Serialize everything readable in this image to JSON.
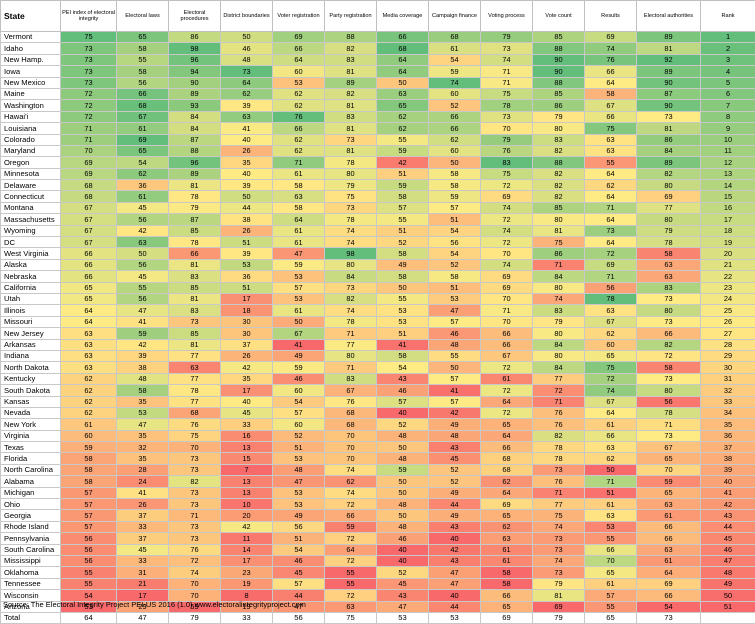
{
  "table": {
    "columns": [
      "State",
      "PEI index of electoral integrity",
      "Electoral laws",
      "Electoral procedures",
      "District boundaries",
      "Voter registration",
      "Party registration",
      "Media coverage",
      "Campaign finance",
      "Voting process",
      "Vote count",
      "Results",
      "Electoral authorities",
      "Rank"
    ],
    "rows": [
      [
        "Vermont",
        75,
        65,
        86,
        50,
        69,
        88,
        66,
        68,
        79,
        85,
        69,
        89,
        1
      ],
      [
        "Idaho",
        73,
        58,
        98,
        46,
        66,
        82,
        68,
        61,
        73,
        88,
        74,
        81,
        2
      ],
      [
        "New Hamp.",
        73,
        55,
        96,
        48,
        64,
        83,
        64,
        54,
        74,
        90,
        76,
        92,
        3
      ],
      [
        "Iowa",
        73,
        58,
        94,
        73,
        60,
        81,
        64,
        59,
        71,
        90,
        66,
        89,
        4
      ],
      [
        "New Mexico",
        73,
        56,
        90,
        64,
        53,
        89,
        50,
        74,
        71,
        88,
        64,
        90,
        5
      ],
      [
        "Maine",
        72,
        66,
        89,
        62,
        62,
        82,
        63,
        60,
        75,
        85,
        58,
        87,
        6
      ],
      [
        "Washington",
        72,
        68,
        93,
        39,
        62,
        81,
        65,
        52,
        78,
        86,
        67,
        90,
        7
      ],
      [
        "Hawai'i",
        72,
        67,
        84,
        63,
        76,
        83,
        62,
        66,
        73,
        79,
        66,
        73,
        8
      ],
      [
        "Louisiana",
        71,
        61,
        84,
        41,
        66,
        81,
        62,
        66,
        70,
        80,
        75,
        81,
        9
      ],
      [
        "Colorado",
        71,
        69,
        87,
        40,
        62,
        73,
        55,
        62,
        79,
        83,
        63,
        86,
        10
      ],
      [
        "Maryland",
        70,
        65,
        88,
        26,
        62,
        81,
        59,
        60,
        76,
        82,
        63,
        84,
        11
      ],
      [
        "Oregon",
        69,
        54,
        96,
        35,
        71,
        78,
        42,
        50,
        83,
        88,
        55,
        89,
        12
      ],
      [
        "Minnesota",
        69,
        62,
        89,
        40,
        61,
        80,
        51,
        58,
        75,
        82,
        64,
        82,
        13
      ],
      [
        "Delaware",
        68,
        36,
        81,
        39,
        58,
        79,
        59,
        58,
        72,
        82,
        62,
        80,
        14
      ],
      [
        "Connecticut",
        68,
        61,
        78,
        50,
        63,
        75,
        58,
        59,
        69,
        82,
        64,
        69,
        15
      ],
      [
        "Montana",
        67,
        45,
        79,
        44,
        58,
        73,
        57,
        57,
        74,
        85,
        71,
        77,
        16
      ],
      [
        "Massachusetts",
        67,
        56,
        87,
        38,
        64,
        78,
        55,
        51,
        72,
        80,
        64,
        80,
        17
      ],
      [
        "Wyoming",
        67,
        42,
        85,
        26,
        61,
        74,
        51,
        54,
        74,
        81,
        73,
        79,
        18
      ],
      [
        "DC",
        67,
        63,
        78,
        51,
        61,
        74,
        52,
        56,
        72,
        75,
        64,
        78,
        19
      ],
      [
        "West Virginia",
        66,
        50,
        66,
        39,
        47,
        98,
        58,
        54,
        70,
        86,
        72,
        58,
        20
      ],
      [
        "Alaska",
        66,
        56,
        81,
        53,
        59,
        80,
        49,
        52,
        74,
        71,
        69,
        63,
        21
      ],
      [
        "Nebraska",
        66,
        45,
        83,
        36,
        53,
        84,
        58,
        58,
        69,
        84,
        71,
        63,
        22
      ],
      [
        "California",
        65,
        55,
        85,
        51,
        57,
        73,
        50,
        51,
        69,
        80,
        56,
        83,
        23
      ],
      [
        "Utah",
        65,
        56,
        81,
        17,
        53,
        82,
        55,
        53,
        70,
        74,
        78,
        73,
        24
      ],
      [
        "Illinois",
        64,
        47,
        83,
        18,
        61,
        74,
        53,
        47,
        71,
        83,
        63,
        80,
        25
      ],
      [
        "Missouri",
        64,
        41,
        73,
        30,
        50,
        78,
        53,
        57,
        70,
        79,
        67,
        73,
        26
      ],
      [
        "New Jersey",
        63,
        59,
        85,
        30,
        67,
        71,
        51,
        46,
        66,
        80,
        62,
        66,
        27
      ],
      [
        "Arkansas",
        63,
        42,
        81,
        37,
        41,
        77,
        41,
        48,
        66,
        84,
        60,
        82,
        28
      ],
      [
        "Indiana",
        63,
        39,
        77,
        26,
        49,
        80,
        58,
        55,
        67,
        80,
        65,
        72,
        29
      ],
      [
        "North Dakota",
        63,
        38,
        63,
        42,
        59,
        71,
        54,
        50,
        72,
        84,
        75,
        58,
        30
      ],
      [
        "Kentucky",
        62,
        48,
        77,
        35,
        46,
        83,
        43,
        57,
        61,
        77,
        72,
        73,
        31
      ],
      [
        "South Dakota",
        62,
        58,
        78,
        17,
        60,
        67,
        46,
        41,
        72,
        72,
        74,
        80,
        32
      ],
      [
        "Kansas",
        62,
        35,
        77,
        40,
        54,
        76,
        57,
        57,
        64,
        71,
        67,
        56,
        33
      ],
      [
        "Nevada",
        62,
        53,
        68,
        45,
        57,
        68,
        40,
        42,
        72,
        76,
        64,
        78,
        34
      ],
      [
        "New York",
        61,
        47,
        76,
        33,
        60,
        68,
        52,
        49,
        65,
        76,
        61,
        71,
        35
      ],
      [
        "Virginia",
        60,
        35,
        75,
        16,
        52,
        70,
        48,
        48,
        64,
        82,
        66,
        73,
        36
      ],
      [
        "Texas",
        59,
        32,
        70,
        13,
        51,
        70,
        50,
        43,
        66,
        78,
        63,
        67,
        37
      ],
      [
        "Florida",
        58,
        35,
        73,
        15,
        53,
        70,
        48,
        45,
        68,
        78,
        62,
        65,
        38
      ],
      [
        "North Carolina",
        58,
        28,
        73,
        7,
        48,
        74,
        59,
        52,
        68,
        73,
        50,
        70,
        39
      ],
      [
        "Alabama",
        58,
        24,
        82,
        13,
        47,
        62,
        50,
        52,
        62,
        76,
        71,
        59,
        40
      ],
      [
        "Michigan",
        57,
        41,
        73,
        13,
        53,
        74,
        50,
        49,
        64,
        71,
        51,
        65,
        41
      ],
      [
        "Ohio",
        57,
        26,
        73,
        10,
        53,
        72,
        48,
        44,
        69,
        77,
        61,
        63,
        42
      ],
      [
        "Georgia",
        57,
        37,
        71,
        20,
        49,
        66,
        50,
        49,
        65,
        75,
        63,
        61,
        43
      ],
      [
        "Rhode Island",
        57,
        33,
        73,
        42,
        56,
        59,
        48,
        43,
        62,
        74,
        53,
        66,
        44
      ],
      [
        "Pennsylvania",
        56,
        37,
        73,
        11,
        51,
        72,
        46,
        40,
        63,
        73,
        55,
        66,
        45
      ],
      [
        "South Carolina",
        56,
        45,
        76,
        14,
        54,
        64,
        40,
        42,
        61,
        73,
        66,
        63,
        46
      ],
      [
        "Mississippi",
        56,
        33,
        72,
        17,
        46,
        72,
        40,
        43,
        61,
        74,
        70,
        61,
        47
      ],
      [
        "Oklahoma",
        55,
        31,
        74,
        23,
        45,
        55,
        52,
        47,
        58,
        73,
        65,
        64,
        48
      ],
      [
        "Tennessee",
        55,
        21,
        70,
        19,
        57,
        55,
        45,
        47,
        58,
        79,
        61,
        69,
        49
      ],
      [
        "Wisconsin",
        54,
        17,
        70,
        8,
        44,
        72,
        43,
        40,
        66,
        81,
        57,
        66,
        50
      ],
      [
        "Arizona",
        53,
        29,
        59,
        19,
        47,
        63,
        47,
        44,
        65,
        69,
        55,
        54,
        51
      ]
    ],
    "total": [
      "Total",
      64,
      47,
      79,
      33,
      56,
      75,
      53,
      53,
      69,
      79,
      65,
      73,
      ""
    ]
  },
  "source": "Source: The Electoral Integrity Project PEI-US 2016 (1.0) www.electoralintegrityproject.com",
  "colors": {
    "low": "#f8696b",
    "mid": "#ffeb84",
    "high": "#63be7b"
  }
}
